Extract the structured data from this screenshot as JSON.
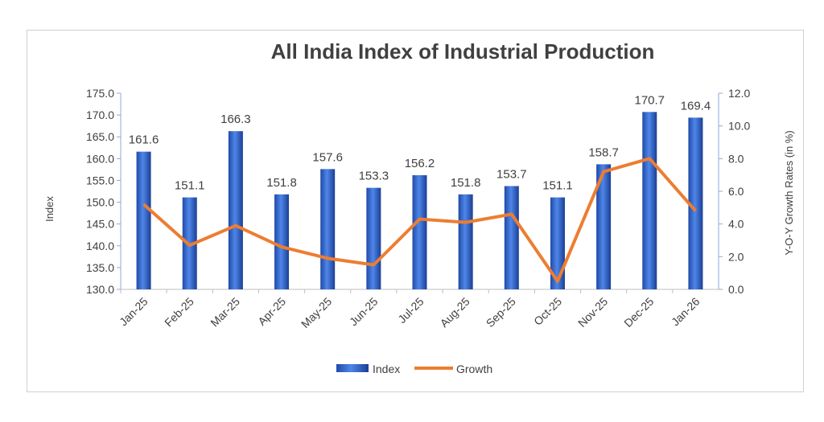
{
  "chart_data": {
    "type": "bar+line",
    "title": "All India Index of Industrial Production",
    "categories": [
      "Jan-25",
      "Feb-25",
      "Mar-25",
      "Apr-25",
      "May-25",
      "Jun-25",
      "Jul-25",
      "Aug-25",
      "Sep-25",
      "Oct-25",
      "Nov-25",
      "Dec-25",
      "Jan-26"
    ],
    "series": [
      {
        "name": "Index",
        "type": "bar",
        "axis": "left",
        "color": "#2E5FC4",
        "values": [
          161.6,
          151.1,
          166.3,
          151.8,
          157.6,
          153.3,
          156.2,
          151.8,
          153.7,
          151.1,
          158.7,
          170.7,
          169.4
        ]
      },
      {
        "name": "Growth",
        "type": "line",
        "axis": "right",
        "color": "#ED7D31",
        "values": [
          5.2,
          2.7,
          3.9,
          2.6,
          1.9,
          1.5,
          4.3,
          4.1,
          4.6,
          0.5,
          7.2,
          8.0,
          4.8
        ]
      }
    ],
    "ylabel": "Index",
    "y2label": "Y-O-Y Growth Rates (in %)",
    "ylim": [
      130,
      175
    ],
    "yticks": [
      "130.0",
      "135.0",
      "140.0",
      "145.0",
      "150.0",
      "155.0",
      "160.0",
      "165.0",
      "170.0",
      "175.0"
    ],
    "y2lim": [
      0,
      12
    ],
    "y2ticks": [
      "0.0",
      "2.0",
      "4.0",
      "6.0",
      "8.0",
      "10.0",
      "12.0"
    ],
    "grid": false,
    "legend_position": "bottom",
    "data_labels": true
  }
}
